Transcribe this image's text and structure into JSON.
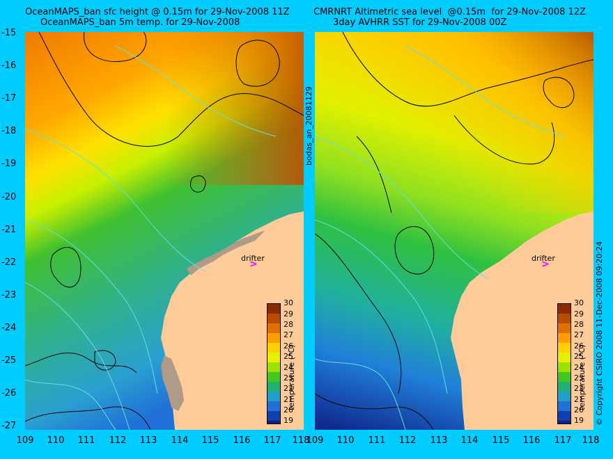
{
  "titles": {
    "left_line1": "OceanMAPS_ban sfc height @ 0.15m for 29-Nov-2008 11Z",
    "left_line2": "OceanMAPS_ban 5m temp. for 29-Nov-2008",
    "right_line1": "CMRNRT Altimetric sea level  @0.15m  for 29-Nov-2008 12Z",
    "right_line2": "3day AVHRR SST for 29-Nov-2008 00Z"
  },
  "axes": {
    "y_labels": [
      "-15",
      "-16",
      "-17",
      "-18",
      "-19",
      "-20",
      "-21",
      "-22",
      "-23",
      "-24",
      "-25",
      "-26",
      "-27"
    ],
    "x_labels": [
      "109",
      "110",
      "111",
      "112",
      "113",
      "114",
      "115",
      "116",
      "117",
      "118"
    ]
  },
  "side_text": {
    "middle": "bodas_an_20081129",
    "right": "© Copyright CSIRO 2008  11-Dec-2008 09:20:24"
  },
  "colorbar": {
    "title": "temperature (°C)",
    "ticks": [
      "30",
      "29",
      "28",
      "27",
      "26",
      "25",
      "24",
      "23",
      "22",
      "21",
      "20",
      "19"
    ],
    "colors": [
      "#8b2a00",
      "#b84d00",
      "#e07000",
      "#ff9e00",
      "#ffd000",
      "#e8f000",
      "#a0e000",
      "#40c820",
      "#20b070",
      "#20a0c8",
      "#2070d8",
      "#1040b0",
      "#102080"
    ]
  },
  "annotations": {
    "drifter_label": "drifter",
    "drifter_marker": ">"
  }
}
